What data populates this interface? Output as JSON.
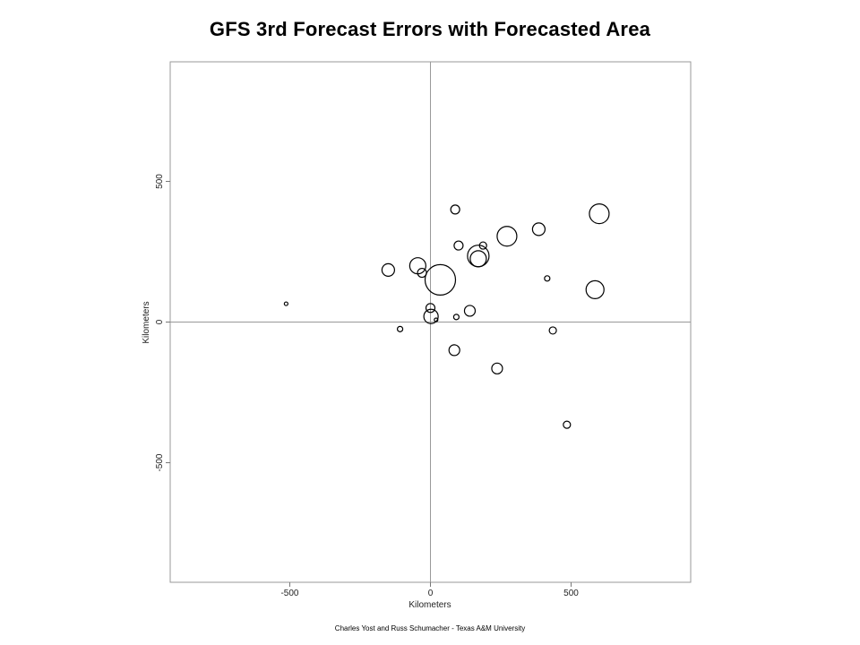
{
  "chart_data": {
    "type": "scatter",
    "title": "GFS 3rd Forecast Errors with Forecasted Area",
    "xlabel": "Kilometers",
    "ylabel": "Kilometers",
    "xlim": [
      -925,
      925
    ],
    "ylim": [
      -925,
      925
    ],
    "xticks": [
      -500,
      0,
      500
    ],
    "yticks": [
      -500,
      0,
      500
    ],
    "xtick_labels": [
      "-500",
      "0",
      "500"
    ],
    "ytick_labels": [
      "-500",
      "0",
      "500"
    ],
    "grid": false,
    "reference_lines": [
      0
    ],
    "marker": "open-circle",
    "colors": {
      "marker_stroke": "#000000",
      "frame": "#999999",
      "reference_line": "#999999"
    },
    "points": [
      {
        "x": 88,
        "y": 400,
        "size": 5
      },
      {
        "x": 600,
        "y": 385,
        "size": 11
      },
      {
        "x": 385,
        "y": 330,
        "size": 7
      },
      {
        "x": 272,
        "y": 305,
        "size": 11
      },
      {
        "x": 100,
        "y": 272,
        "size": 5
      },
      {
        "x": 187,
        "y": 272,
        "size": 4
      },
      {
        "x": 170,
        "y": 235,
        "size": 12
      },
      {
        "x": 170,
        "y": 225,
        "size": 9
      },
      {
        "x": -45,
        "y": 200,
        "size": 9
      },
      {
        "x": -150,
        "y": 185,
        "size": 7
      },
      {
        "x": -30,
        "y": 175,
        "size": 5
      },
      {
        "x": 35,
        "y": 150,
        "size": 17
      },
      {
        "x": 415,
        "y": 155,
        "size": 3
      },
      {
        "x": 585,
        "y": 115,
        "size": 10
      },
      {
        "x": 0,
        "y": 50,
        "size": 5
      },
      {
        "x": 140,
        "y": 40,
        "size": 6
      },
      {
        "x": 2,
        "y": 20,
        "size": 8
      },
      {
        "x": 20,
        "y": 8,
        "size": 2
      },
      {
        "x": 92,
        "y": 18,
        "size": 3
      },
      {
        "x": -513,
        "y": 65,
        "size": 2
      },
      {
        "x": -108,
        "y": -25,
        "size": 3
      },
      {
        "x": 435,
        "y": -30,
        "size": 4
      },
      {
        "x": 85,
        "y": -100,
        "size": 6
      },
      {
        "x": 237,
        "y": -165,
        "size": 6
      },
      {
        "x": 485,
        "y": -365,
        "size": 4
      }
    ]
  },
  "credit": "Charles Yost and Russ Schumacher - Texas A&M University"
}
